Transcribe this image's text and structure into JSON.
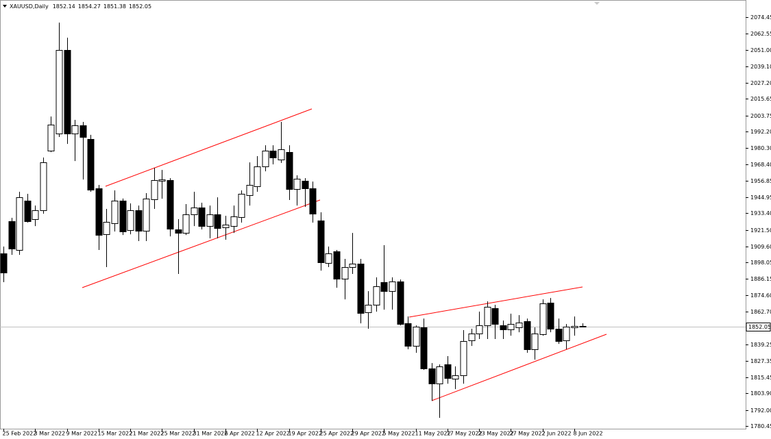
{
  "chart_data": {
    "type": "candlestick",
    "symbol": "XAUUSD,Daily",
    "categories": [
      "25 Feb 2022",
      null,
      null,
      null,
      "3 Mar 2022",
      null,
      null,
      null,
      "9 Mar 2022",
      null,
      null,
      null,
      "15 Mar 2022",
      null,
      null,
      null,
      "21 Mar 2022",
      null,
      null,
      null,
      "25 Mar 2022",
      null,
      null,
      null,
      "31 Mar 2022",
      null,
      null,
      null,
      "6 Apr 2022",
      null,
      null,
      null,
      "12 Apr 2022",
      null,
      null,
      null,
      "19 Apr 2022",
      null,
      null,
      null,
      "25 Apr 2022",
      null,
      null,
      null,
      "29 Apr 2022",
      null,
      null,
      null,
      "5 May 2022",
      null,
      null,
      null,
      "11 May 2022",
      null,
      null,
      null,
      "17 May 2022",
      null,
      null,
      null,
      "23 May 2022",
      null,
      null,
      null,
      "27 May 2022",
      null,
      null,
      null,
      "2 Jun 2022",
      null,
      null,
      null,
      "8 Jun 2022",
      null
    ],
    "open": [
      1904.5,
      1927.7,
      1907.0,
      1942.5,
      1929.2,
      1935.6,
      1978.4,
      1990.7,
      2050.8,
      1990.7,
      1996.6,
      1986.8,
      1951.3,
      1918.3,
      1926.2,
      1942.5,
      1921.3,
      1935.6,
      1920.8,
      1943.5,
      1956.7,
      1957.2,
      1921.8,
      1919.3,
      1932.6,
      1937.6,
      1924.2,
      1932.6,
      1923.3,
      1924.2,
      1930.6,
      1946.4,
      1952.8,
      1967.1,
      1978.4,
      1972.0,
      1977.4,
      1950.8,
      1956.7,
      1951.3,
      1928.2,
      1897.6,
      1906.0,
      1886.3,
      1894.7,
      1897.1,
      1862.2,
      1867.6,
      1883.9,
      1877.4,
      1884.4,
      1854.3,
      1838.0,
      1851.3,
      1821.8,
      1810.9,
      1824.7,
      1814.4,
      1816.9,
      1842.0,
      1847.0,
      1852.8,
      1865.1,
      1852.8,
      1849.9,
      1851.3,
      1855.8,
      1835.6,
      1846.4,
      1869.1,
      1850.4,
      1842.0,
      1851.3,
      1852.14
    ],
    "high": [
      1909.5,
      1930.2,
      1948.9,
      1947.4,
      1939.0,
      1973.5,
      2003.0,
      2070.5,
      2059.7,
      2000.6,
      1999.1,
      1989.8,
      1953.8,
      1936.6,
      1949.9,
      1944.0,
      1940.5,
      1939.0,
      1947.9,
      1966.1,
      1964.6,
      1958.7,
      1929.2,
      1940.0,
      1948.9,
      1941.0,
      1939.0,
      1944.9,
      1931.6,
      1939.0,
      1949.9,
      1970.0,
      1974.5,
      1982.3,
      1982.3,
      1999.1,
      1982.3,
      1960.7,
      1958.7,
      1956.2,
      1934.1,
      1909.5,
      1907.0,
      1900.6,
      1919.3,
      1900.6,
      1877.4,
      1887.3,
      1910.5,
      1887.3,
      1885.8,
      1859.2,
      1852.8,
      1857.7,
      1825.7,
      1824.7,
      1830.7,
      1823.3,
      1849.4,
      1850.4,
      1862.7,
      1870.1,
      1867.6,
      1856.3,
      1861.2,
      1860.2,
      1857.7,
      1851.3,
      1871.5,
      1872.5,
      1857.7,
      1853.8,
      1859.2,
      1854.27
    ],
    "low": [
      1883.9,
      1903.5,
      1903.5,
      1926.7,
      1924.2,
      1933.1,
      1977.4,
      1988.3,
      1983.3,
      1971.0,
      1957.7,
      1948.9,
      1907.0,
      1894.7,
      1920.3,
      1917.8,
      1918.3,
      1913.4,
      1913.4,
      1936.6,
      1943.9,
      1916.8,
      1889.8,
      1917.8,
      1924.2,
      1921.8,
      1915.4,
      1915.4,
      1914.4,
      1919.3,
      1926.7,
      1939.0,
      1948.9,
      1963.6,
      1968.6,
      1969.6,
      1943.0,
      1939.0,
      1938.0,
      1926.7,
      1892.2,
      1894.7,
      1879.9,
      1871.5,
      1889.8,
      1854.3,
      1850.4,
      1862.7,
      1864.1,
      1864.1,
      1852.8,
      1835.6,
      1833.1,
      1820.8,
      1798.5,
      1786.3,
      1810.9,
      1807.0,
      1810.9,
      1838.0,
      1843.0,
      1843.0,
      1843.0,
      1843.0,
      1845.4,
      1847.9,
      1833.1,
      1828.2,
      1845.4,
      1847.9,
      1839.5,
      1835.6,
      1845.4,
      1851.38
    ],
    "close": [
      1890.7,
      1908.0,
      1944.9,
      1927.7,
      1935.6,
      1970.0,
      1997.1,
      2050.8,
      1990.7,
      1996.6,
      1988.3,
      1950.3,
      1917.8,
      1927.2,
      1942.5,
      1920.3,
      1935.6,
      1920.8,
      1944.0,
      1957.2,
      1957.7,
      1922.3,
      1919.3,
      1932.6,
      1937.6,
      1924.2,
      1932.6,
      1922.8,
      1925.2,
      1931.1,
      1947.4,
      1953.8,
      1967.1,
      1978.4,
      1973.5,
      1979.4,
      1950.8,
      1958.2,
      1951.3,
      1933.1,
      1898.1,
      1904.5,
      1886.3,
      1894.7,
      1897.1,
      1861.7,
      1867.6,
      1880.9,
      1877.4,
      1884.4,
      1853.8,
      1838.0,
      1851.8,
      1821.8,
      1810.9,
      1823.3,
      1814.9,
      1816.9,
      1841.5,
      1847.0,
      1852.8,
      1866.1,
      1853.8,
      1849.9,
      1853.8,
      1854.8,
      1835.6,
      1846.9,
      1868.6,
      1850.4,
      1841.5,
      1851.8,
      1852.3,
      1852.05
    ],
    "up_color": "#ffffff",
    "down_color": "#000000",
    "outline_color": "#000000",
    "ylim": [
      1778.5,
      2084.8
    ],
    "yticks": [
      2074.45,
      2062.55,
      {
        "value": 2051,
        "label": "2051.00"
      },
      {
        "value": 2039.1,
        "label": "2039.10"
      },
      {
        "value": 2027.2,
        "label": "2027.20"
      },
      2015.65,
      2003.75,
      {
        "value": 1992.2,
        "label": "1992.20"
      },
      {
        "value": 1980.3,
        "label": "1980.30"
      },
      {
        "value": 1968.4,
        "label": "1968.40"
      },
      1956.85,
      1944.95,
      {
        "value": 1933.4,
        "label": "1933.40"
      },
      {
        "value": 1921.5,
        "label": "1921.50"
      },
      {
        "value": 1909.6,
        "label": "1909.60"
      },
      1898.05,
      1886.15,
      {
        "value": 1874.6,
        "label": "1874.60"
      },
      {
        "value": 1862.7,
        "label": "1862.70"
      },
      1839.25,
      1827.35,
      1815.45,
      {
        "value": 1803.9,
        "label": "1803.90"
      },
      {
        "value": 1792,
        "label": "1792.00"
      },
      1780.45
    ],
    "grid": false
  }
}
